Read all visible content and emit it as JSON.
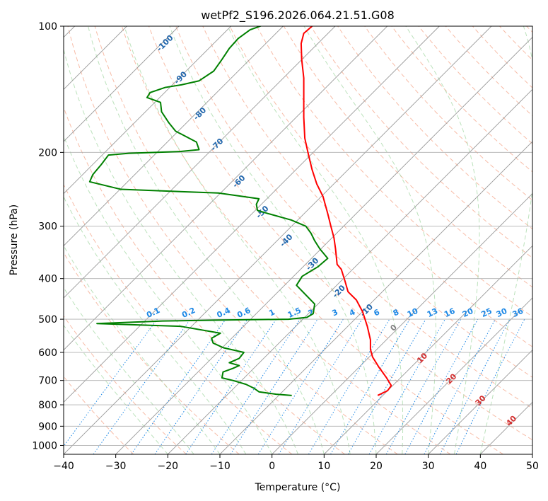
{
  "chart_data": {
    "type": "line",
    "title": "wetPf2_S196.2026.064.21.51.G08",
    "xlabel": "Temperature (°C)",
    "ylabel": "Pressure (hPa)",
    "xlim": [
      -40,
      50
    ],
    "ylim": [
      1050,
      100
    ],
    "y_scale": "log",
    "grid": true,
    "x_ticks": [
      -40,
      -30,
      -20,
      -10,
      0,
      10,
      20,
      30,
      40,
      50
    ],
    "x_tick_labels": [
      "−40",
      "−30",
      "−20",
      "−10",
      "0",
      "10",
      "20",
      "30",
      "40",
      "50"
    ],
    "y_ticks": [
      100,
      200,
      300,
      400,
      500,
      600,
      700,
      800,
      900,
      1000
    ],
    "y_tick_labels": [
      "100",
      "200",
      "300",
      "400",
      "500",
      "600",
      "700",
      "800",
      "900",
      "1000"
    ],
    "isotherm_labels": [
      {
        "text": "-100",
        "x": -20.5,
        "p": 110
      },
      {
        "text": "-90",
        "x": -17.5,
        "p": 133
      },
      {
        "text": "-80",
        "x": -13.8,
        "p": 162
      },
      {
        "text": "-70",
        "x": -10.5,
        "p": 192
      },
      {
        "text": "-60",
        "x": -6.3,
        "p": 235
      },
      {
        "text": "-50",
        "x": -1.8,
        "p": 278
      },
      {
        "text": "-40",
        "x": 2.8,
        "p": 325
      },
      {
        "text": "-30",
        "x": 7.8,
        "p": 370
      },
      {
        "text": "-20",
        "x": 12.9,
        "p": 430
      },
      {
        "text": "-10",
        "x": 18.2,
        "p": 477
      },
      {
        "text": "0",
        "x": 23.4,
        "p": 525
      },
      {
        "text": "10",
        "x": 28.9,
        "p": 620
      },
      {
        "text": "20",
        "x": 34.5,
        "p": 695
      },
      {
        "text": "30",
        "x": 40.1,
        "p": 783
      },
      {
        "text": "40",
        "x": 46.0,
        "p": 875
      }
    ],
    "mixing_ratio_labels": [
      {
        "text": "0.1",
        "x": -22.6
      },
      {
        "text": "0.2",
        "x": -15.8
      },
      {
        "text": "0.4",
        "x": -9.1
      },
      {
        "text": "0.6",
        "x": -5.2
      },
      {
        "text": "1",
        "x": 0.2
      },
      {
        "text": "1.5",
        "x": 4.5
      },
      {
        "text": "2",
        "x": 7.7
      },
      {
        "text": "3",
        "x": 12.3
      },
      {
        "text": "4",
        "x": 15.6
      },
      {
        "text": "6",
        "x": 20.3
      },
      {
        "text": "8",
        "x": 24.0
      },
      {
        "text": "10",
        "x": 27.2
      },
      {
        "text": "13",
        "x": 31.0
      },
      {
        "text": "16",
        "x": 34.3
      },
      {
        "text": "20",
        "x": 37.8
      },
      {
        "text": "25",
        "x": 41.4
      },
      {
        "text": "30",
        "x": 44.3
      },
      {
        "text": "36",
        "x": 47.4
      }
    ],
    "series": [
      {
        "color": "#ff0000",
        "points": [
          [
            20.3,
            760
          ],
          [
            22.2,
            740
          ],
          [
            22.9,
            720
          ],
          [
            22.0,
            690
          ],
          [
            20.5,
            650
          ],
          [
            19.3,
            615
          ],
          [
            18.9,
            590
          ],
          [
            18.9,
            560
          ],
          [
            18.3,
            520
          ],
          [
            17.4,
            480
          ],
          [
            16.2,
            450
          ],
          [
            14.6,
            430
          ],
          [
            14.0,
            405
          ],
          [
            13.3,
            380
          ],
          [
            12.5,
            370
          ],
          [
            12.2,
            340
          ],
          [
            11.9,
            320
          ],
          [
            11.3,
            300
          ],
          [
            10.7,
            280
          ],
          [
            9.8,
            255
          ],
          [
            8.6,
            238
          ],
          [
            7.7,
            220
          ],
          [
            6.9,
            200
          ],
          [
            6.3,
            185
          ],
          [
            6.1,
            165
          ],
          [
            6.1,
            145
          ],
          [
            6.1,
            133
          ],
          [
            5.7,
            120
          ],
          [
            5.6,
            110
          ],
          [
            6.1,
            104
          ],
          [
            7.7,
            100
          ]
        ]
      },
      {
        "color": "#008000",
        "points": [
          [
            3.8,
            760
          ],
          [
            0.8,
            755
          ],
          [
            -2.5,
            745
          ],
          [
            -3.5,
            730
          ],
          [
            -5.0,
            715
          ],
          [
            -7.5,
            700
          ],
          [
            -9.6,
            690
          ],
          [
            -9.4,
            668
          ],
          [
            -7.5,
            655
          ],
          [
            -6.3,
            645
          ],
          [
            -8.2,
            635
          ],
          [
            -6.3,
            620
          ],
          [
            -5.4,
            600
          ],
          [
            -9.3,
            585
          ],
          [
            -11.3,
            570
          ],
          [
            -11.6,
            555
          ],
          [
            -9.9,
            540
          ],
          [
            -17.5,
            520
          ],
          [
            -33.6,
            512
          ],
          [
            -21.0,
            505
          ],
          [
            -8.0,
            502
          ],
          [
            3.2,
            500
          ],
          [
            6.7,
            495
          ],
          [
            7.9,
            485
          ],
          [
            8.2,
            460
          ],
          [
            6.3,
            435
          ],
          [
            4.7,
            415
          ],
          [
            5.8,
            395
          ],
          [
            8.8,
            375
          ],
          [
            10.7,
            358
          ],
          [
            9.2,
            340
          ],
          [
            8.2,
            325
          ],
          [
            7.5,
            312
          ],
          [
            6.5,
            300
          ],
          [
            3.7,
            290
          ],
          [
            -0.7,
            280
          ],
          [
            -2.8,
            275
          ],
          [
            -3.0,
            266
          ],
          [
            -2.5,
            258
          ],
          [
            -10.3,
            250
          ],
          [
            -29.0,
            245
          ],
          [
            -35.0,
            235
          ],
          [
            -34.4,
            226
          ],
          [
            -32.8,
            214
          ],
          [
            -31.4,
            203
          ],
          [
            -27.5,
            201
          ],
          [
            -17.5,
            199
          ],
          [
            -14.0,
            197
          ],
          [
            -14.5,
            189
          ],
          [
            -18.5,
            178
          ],
          [
            -19.8,
            170
          ],
          [
            -21.2,
            160
          ],
          [
            -21.4,
            152
          ],
          [
            -24.0,
            148
          ],
          [
            -23.4,
            144
          ],
          [
            -20.5,
            140
          ],
          [
            -17.4,
            138
          ],
          [
            -14.0,
            135
          ],
          [
            -11.2,
            128
          ],
          [
            -9.6,
            120
          ],
          [
            -8.2,
            113
          ],
          [
            -6.5,
            107
          ],
          [
            -4.2,
            102
          ],
          [
            -1.3,
            99
          ]
        ]
      }
    ]
  }
}
